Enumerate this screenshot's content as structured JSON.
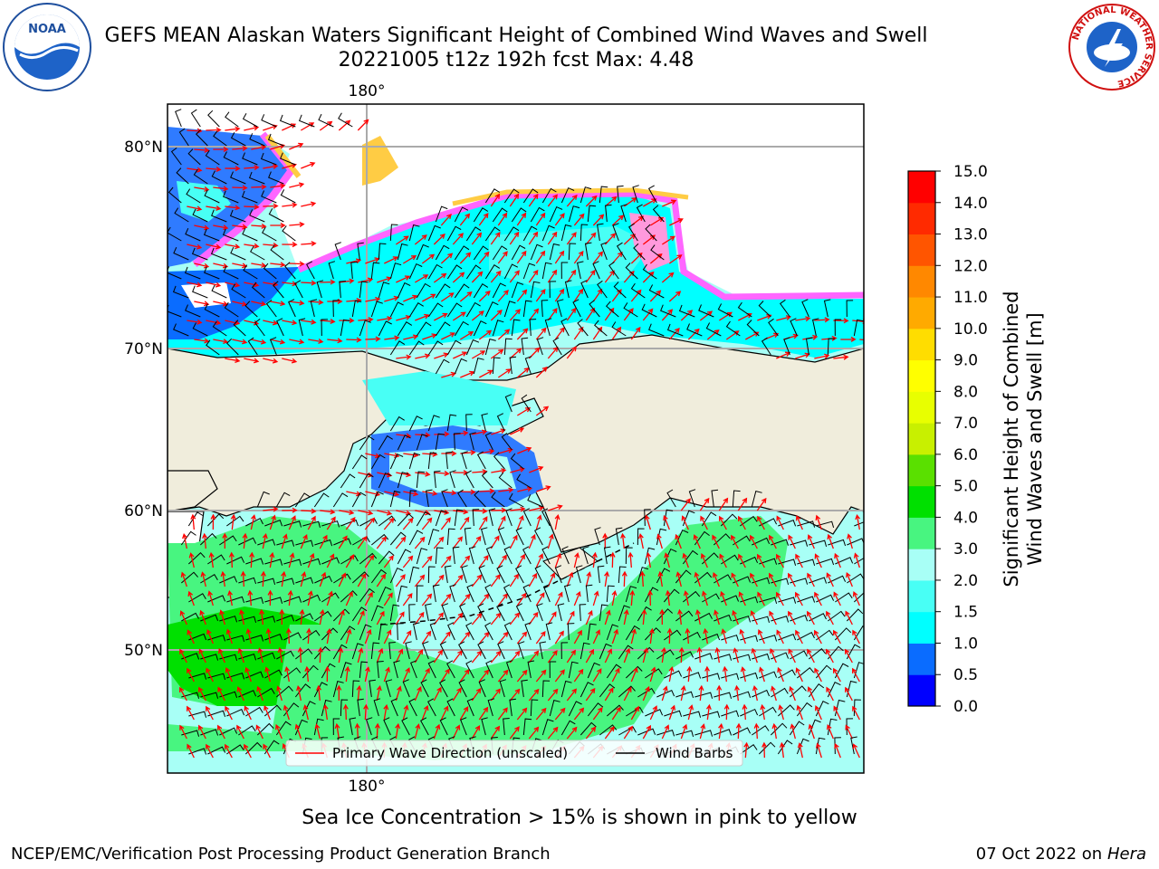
{
  "header": {
    "title_line1": "GEFS MEAN Alaskan Waters Significant Height of Combined Wind Waves and Swell",
    "title_line2": "20221005 t12z 192h fcst   Max: 4.48"
  },
  "logos": {
    "left": "noaa-logo",
    "right": "nws-logo",
    "nws_ring_text": "NATIONAL WEATHER SERVICE"
  },
  "map": {
    "lon_label_top": "180°",
    "lon_label_bottom": "180°",
    "lat_labels": [
      "80°N",
      "70°N",
      "60°N",
      "50°N"
    ],
    "land_color": "#f0eddc",
    "legend": {
      "wave_direction": "Primary Wave Direction (unscaled)",
      "wind_barbs": "Wind Barbs"
    }
  },
  "colorbar": {
    "label_line1": "Significant Height of Combined",
    "label_line2": "Wind Waves and Swell [m]",
    "ticks": [
      "0.0",
      "0.5",
      "1.0",
      "1.5",
      "2.0",
      "3.0",
      "4.0",
      "5.0",
      "6.0",
      "7.0",
      "8.0",
      "9.0",
      "10.0",
      "11.0",
      "12.0",
      "13.0",
      "14.0",
      "15.0"
    ],
    "colors": [
      "#0000ff",
      "#0a6cff",
      "#00ffff",
      "#48fff5",
      "#a8fff6",
      "#48f580",
      "#00e000",
      "#5ae000",
      "#c8f000",
      "#e8ff00",
      "#ffff00",
      "#ffdd00",
      "#ffaa00",
      "#ff8800",
      "#ff5500",
      "#ff2a00",
      "#ff0000"
    ]
  },
  "footer": {
    "ice_note": "Sea Ice Concentration > 15% is shown in pink to yellow",
    "left": "NCEP/EMC/Verification Post Processing Product Generation Branch",
    "date": "07 Oct 2022 on",
    "host": "Hera"
  }
}
